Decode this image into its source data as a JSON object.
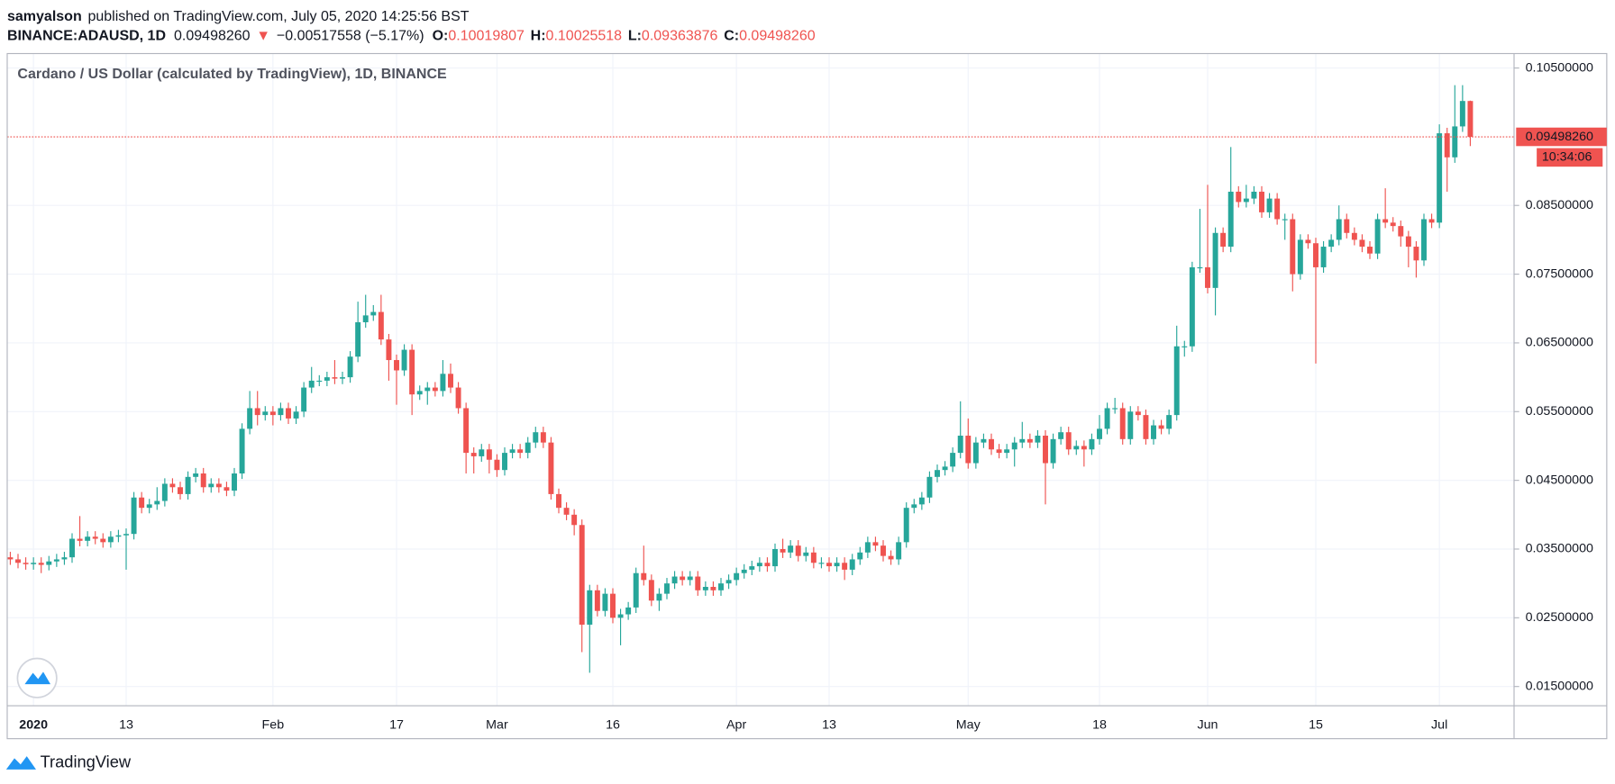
{
  "header": {
    "author": "samyalson",
    "published": "published on TradingView.com, July 05, 2020 14:25:56 BST",
    "symbol": "BINANCE:ADAUSD, 1D",
    "price": "0.09498260",
    "arrow": "▼",
    "change": "−0.00517558 (−5.17%)",
    "o_label": "O:",
    "o": "0.10019807",
    "h_label": "H:",
    "h": "0.10025518",
    "l_label": "L:",
    "l": "0.09363876",
    "c_label": "C:",
    "c": "0.09498260"
  },
  "footer": {
    "brand": "TradingView"
  },
  "chart_data": {
    "type": "candlestick",
    "title": "Cardano / US Dollar (calculated by TradingView), 1D, BINANCE",
    "up_color": "#26a69a",
    "down_color": "#ef5350",
    "grid": true,
    "ylim": [
      0.0122,
      0.1071
    ],
    "yticks": [
      {
        "value": 0.105,
        "label": "0.10500000"
      },
      {
        "value": 0.085,
        "label": "0.08500000"
      },
      {
        "value": 0.075,
        "label": "0.07500000"
      },
      {
        "value": 0.065,
        "label": "0.06500000"
      },
      {
        "value": 0.055,
        "label": "0.05500000"
      },
      {
        "value": 0.045,
        "label": "0.04500000"
      },
      {
        "value": 0.035,
        "label": "0.03500000"
      },
      {
        "value": 0.025,
        "label": "0.02500000"
      },
      {
        "value": 0.015,
        "label": "0.01500000"
      }
    ],
    "price_line": {
      "value": 0.0949826,
      "label": "0.09498260",
      "countdown": "10:34:06"
    },
    "categories": [
      null,
      null,
      null,
      "2020",
      null,
      null,
      null,
      null,
      null,
      null,
      null,
      null,
      null,
      null,
      null,
      "13",
      null,
      null,
      null,
      null,
      null,
      null,
      null,
      null,
      null,
      null,
      null,
      null,
      null,
      null,
      null,
      null,
      null,
      null,
      "Feb",
      null,
      null,
      null,
      null,
      null,
      null,
      null,
      null,
      null,
      null,
      null,
      null,
      null,
      null,
      null,
      "17",
      null,
      null,
      null,
      null,
      null,
      null,
      null,
      null,
      null,
      null,
      null,
      null,
      "Mar",
      null,
      null,
      null,
      null,
      null,
      null,
      null,
      null,
      null,
      null,
      null,
      null,
      null,
      null,
      "16",
      null,
      null,
      null,
      null,
      null,
      null,
      null,
      null,
      null,
      null,
      null,
      null,
      null,
      null,
      null,
      "Apr",
      null,
      null,
      null,
      null,
      null,
      null,
      null,
      null,
      null,
      null,
      null,
      "13",
      null,
      null,
      null,
      null,
      null,
      null,
      null,
      null,
      null,
      null,
      null,
      null,
      null,
      null,
      null,
      null,
      null,
      "May",
      null,
      null,
      null,
      null,
      null,
      null,
      null,
      null,
      null,
      null,
      null,
      null,
      null,
      null,
      null,
      null,
      "18",
      null,
      null,
      null,
      null,
      null,
      null,
      null,
      null,
      null,
      null,
      null,
      null,
      null,
      "Jun",
      null,
      null,
      null,
      null,
      null,
      null,
      null,
      null,
      null,
      null,
      null,
      null,
      null,
      "15",
      null,
      null,
      null,
      null,
      null,
      null,
      null,
      null,
      null,
      null,
      null,
      null,
      null,
      null,
      null,
      "Jul",
      null,
      null,
      null,
      null
    ],
    "open": [
      0.0338,
      0.0335,
      0.033,
      0.0328,
      0.033,
      0.0327,
      0.0332,
      0.0335,
      0.0338,
      0.0365,
      0.0362,
      0.0368,
      0.0365,
      0.036,
      0.0368,
      0.037,
      0.0372,
      0.0425,
      0.041,
      0.0415,
      0.042,
      0.0445,
      0.044,
      0.043,
      0.0455,
      0.046,
      0.044,
      0.0445,
      0.044,
      0.0435,
      0.046,
      0.0525,
      0.0555,
      0.0545,
      0.055,
      0.0545,
      0.0555,
      0.054,
      0.055,
      0.0585,
      0.0595,
      0.0595,
      0.06,
      0.0598,
      0.06,
      0.063,
      0.068,
      0.069,
      0.0695,
      0.0655,
      0.0625,
      0.061,
      0.064,
      0.0575,
      0.058,
      0.0585,
      0.058,
      0.0605,
      0.0585,
      0.0555,
      0.049,
      0.0485,
      0.0495,
      0.048,
      0.0465,
      0.049,
      0.0495,
      0.049,
      0.0505,
      0.052,
      0.0505,
      0.043,
      0.041,
      0.04,
      0.0385,
      0.024,
      0.029,
      0.026,
      0.0285,
      0.025,
      0.0255,
      0.0265,
      0.0315,
      0.0305,
      0.0275,
      0.0285,
      0.03,
      0.031,
      0.0305,
      0.031,
      0.029,
      0.0295,
      0.029,
      0.03,
      0.0305,
      0.0315,
      0.032,
      0.0325,
      0.033,
      0.0325,
      0.035,
      0.0345,
      0.0355,
      0.034,
      0.0345,
      0.033,
      0.033,
      0.0325,
      0.033,
      0.032,
      0.0335,
      0.0345,
      0.036,
      0.0355,
      0.034,
      0.0335,
      0.036,
      0.041,
      0.0415,
      0.0425,
      0.0455,
      0.0465,
      0.047,
      0.049,
      0.0515,
      0.0475,
      0.0505,
      0.051,
      0.0495,
      0.049,
      0.0495,
      0.0505,
      0.051,
      0.0505,
      0.0515,
      0.0475,
      0.051,
      0.052,
      0.0495,
      0.05,
      0.0495,
      0.051,
      0.0525,
      0.0555,
      0.0555,
      0.051,
      0.055,
      0.0545,
      0.051,
      0.053,
      0.0525,
      0.0545,
      0.0645,
      0.0645,
      0.076,
      0.076,
      0.073,
      0.081,
      0.079,
      0.087,
      0.0855,
      0.086,
      0.087,
      0.084,
      0.086,
      0.083,
      0.083,
      0.075,
      0.08,
      0.0795,
      0.076,
      0.079,
      0.08,
      0.083,
      0.081,
      0.08,
      0.079,
      0.078,
      0.083,
      0.0825,
      0.082,
      0.0805,
      0.079,
      0.077,
      0.083,
      0.0825,
      0.0955,
      0.092,
      0.0965,
      0.10019807
    ],
    "high": [
      0.0346,
      0.0343,
      0.0338,
      0.0338,
      0.0338,
      0.034,
      0.0343,
      0.0346,
      0.0373,
      0.0398,
      0.0376,
      0.0376,
      0.0373,
      0.0376,
      0.0378,
      0.038,
      0.0433,
      0.0433,
      0.0423,
      0.044,
      0.0453,
      0.0453,
      0.0448,
      0.0463,
      0.0468,
      0.0468,
      0.0453,
      0.0453,
      0.0448,
      0.0468,
      0.0533,
      0.058,
      0.058,
      0.0558,
      0.0558,
      0.0563,
      0.0563,
      0.0558,
      0.0593,
      0.0615,
      0.0603,
      0.0608,
      0.0625,
      0.0608,
      0.0638,
      0.071,
      0.072,
      0.0705,
      0.072,
      0.0663,
      0.0633,
      0.0648,
      0.0648,
      0.0588,
      0.0593,
      0.0593,
      0.0625,
      0.062,
      0.0593,
      0.0563,
      0.0498,
      0.0503,
      0.0503,
      0.0488,
      0.0498,
      0.0503,
      0.0503,
      0.0513,
      0.0528,
      0.0528,
      0.0513,
      0.0438,
      0.0418,
      0.0408,
      0.0393,
      0.0298,
      0.0298,
      0.0293,
      0.0293,
      0.0263,
      0.0273,
      0.0323,
      0.0355,
      0.0313,
      0.0293,
      0.0308,
      0.0318,
      0.0318,
      0.0318,
      0.0318,
      0.0303,
      0.0303,
      0.0308,
      0.0313,
      0.0323,
      0.0328,
      0.0333,
      0.0338,
      0.0338,
      0.0358,
      0.0365,
      0.0363,
      0.0363,
      0.0353,
      0.0353,
      0.0338,
      0.0338,
      0.0338,
      0.0338,
      0.0343,
      0.0353,
      0.0368,
      0.0368,
      0.0363,
      0.0348,
      0.0368,
      0.0418,
      0.0423,
      0.0433,
      0.0463,
      0.0473,
      0.0478,
      0.0498,
      0.0565,
      0.054,
      0.0513,
      0.0518,
      0.0518,
      0.0503,
      0.0503,
      0.0513,
      0.0535,
      0.0518,
      0.0523,
      0.0523,
      0.0518,
      0.0528,
      0.0528,
      0.0508,
      0.0508,
      0.0518,
      0.0545,
      0.0563,
      0.057,
      0.0563,
      0.0558,
      0.0558,
      0.0553,
      0.0538,
      0.0538,
      0.0553,
      0.0675,
      0.0653,
      0.0768,
      0.0845,
      0.088,
      0.0818,
      0.0818,
      0.0935,
      0.0878,
      0.088,
      0.0878,
      0.0878,
      0.0868,
      0.0868,
      0.0838,
      0.0838,
      0.0808,
      0.0808,
      0.0803,
      0.0798,
      0.0808,
      0.085,
      0.0838,
      0.0818,
      0.0808,
      0.0798,
      0.0838,
      0.0875,
      0.0833,
      0.0828,
      0.0813,
      0.0798,
      0.0838,
      0.0838,
      0.0968,
      0.0963,
      0.1025,
      0.1025,
      0.10025518
    ],
    "low": [
      0.0327,
      0.0322,
      0.032,
      0.032,
      0.0315,
      0.0319,
      0.0324,
      0.0327,
      0.033,
      0.0354,
      0.0354,
      0.0357,
      0.0352,
      0.0352,
      0.036,
      0.032,
      0.0364,
      0.0402,
      0.0402,
      0.0407,
      0.0412,
      0.0432,
      0.0422,
      0.0422,
      0.0447,
      0.0432,
      0.0432,
      0.0432,
      0.0427,
      0.0427,
      0.0452,
      0.0517,
      0.053,
      0.0537,
      0.053,
      0.0537,
      0.0532,
      0.0532,
      0.0542,
      0.0577,
      0.0587,
      0.0587,
      0.059,
      0.059,
      0.0592,
      0.0622,
      0.0672,
      0.0682,
      0.0647,
      0.0595,
      0.056,
      0.0602,
      0.0545,
      0.0567,
      0.056,
      0.0572,
      0.0572,
      0.0577,
      0.0547,
      0.046,
      0.046,
      0.0477,
      0.046,
      0.0455,
      0.0457,
      0.0482,
      0.0482,
      0.0482,
      0.0497,
      0.0497,
      0.0422,
      0.0402,
      0.0392,
      0.037,
      0.02,
      0.017,
      0.0252,
      0.0252,
      0.0242,
      0.021,
      0.0247,
      0.0257,
      0.0297,
      0.0267,
      0.026,
      0.0277,
      0.0292,
      0.0297,
      0.0297,
      0.0282,
      0.0282,
      0.0282,
      0.0282,
      0.0292,
      0.0297,
      0.0307,
      0.0312,
      0.0317,
      0.0317,
      0.0317,
      0.0337,
      0.0337,
      0.0332,
      0.0332,
      0.0322,
      0.0322,
      0.0317,
      0.0317,
      0.0305,
      0.0312,
      0.0327,
      0.0337,
      0.0347,
      0.0332,
      0.0327,
      0.0327,
      0.0352,
      0.0402,
      0.0407,
      0.0417,
      0.0447,
      0.0457,
      0.0462,
      0.0482,
      0.0467,
      0.0467,
      0.0497,
      0.0487,
      0.0482,
      0.0482,
      0.047,
      0.0497,
      0.0497,
      0.0497,
      0.0415,
      0.0467,
      0.0502,
      0.0487,
      0.0487,
      0.047,
      0.0487,
      0.0502,
      0.0517,
      0.0547,
      0.0502,
      0.0502,
      0.0537,
      0.0502,
      0.0502,
      0.0517,
      0.0517,
      0.0537,
      0.063,
      0.0637,
      0.0752,
      0.0722,
      0.069,
      0.0782,
      0.0782,
      0.0847,
      0.0847,
      0.0852,
      0.0832,
      0.0832,
      0.0822,
      0.08,
      0.0725,
      0.0742,
      0.0787,
      0.062,
      0.0752,
      0.0782,
      0.0792,
      0.0802,
      0.0792,
      0.0782,
      0.0772,
      0.0772,
      0.0817,
      0.0812,
      0.079,
      0.076,
      0.0745,
      0.0762,
      0.0817,
      0.0817,
      0.087,
      0.0912,
      0.0957,
      0.09363876
    ],
    "close": [
      0.0335,
      0.033,
      0.0328,
      0.033,
      0.0327,
      0.0332,
      0.0335,
      0.0338,
      0.0365,
      0.0362,
      0.0368,
      0.0365,
      0.036,
      0.0368,
      0.037,
      0.0372,
      0.0425,
      0.041,
      0.0415,
      0.042,
      0.0445,
      0.044,
      0.043,
      0.0455,
      0.046,
      0.044,
      0.0445,
      0.044,
      0.0435,
      0.046,
      0.0525,
      0.0555,
      0.0545,
      0.055,
      0.0545,
      0.0555,
      0.054,
      0.055,
      0.0585,
      0.0595,
      0.0595,
      0.06,
      0.0598,
      0.06,
      0.063,
      0.068,
      0.069,
      0.0695,
      0.0655,
      0.0625,
      0.061,
      0.064,
      0.0575,
      0.058,
      0.0585,
      0.058,
      0.0605,
      0.0585,
      0.0555,
      0.049,
      0.0485,
      0.0495,
      0.048,
      0.0465,
      0.049,
      0.0495,
      0.049,
      0.0505,
      0.052,
      0.0505,
      0.043,
      0.041,
      0.04,
      0.0385,
      0.024,
      0.029,
      0.026,
      0.0285,
      0.025,
      0.0255,
      0.0265,
      0.0315,
      0.0305,
      0.0275,
      0.0285,
      0.03,
      0.031,
      0.0305,
      0.031,
      0.029,
      0.0295,
      0.029,
      0.03,
      0.0305,
      0.0315,
      0.032,
      0.0325,
      0.033,
      0.0325,
      0.035,
      0.0345,
      0.0355,
      0.034,
      0.0345,
      0.033,
      0.033,
      0.0325,
      0.033,
      0.032,
      0.0335,
      0.0345,
      0.036,
      0.0355,
      0.034,
      0.0335,
      0.036,
      0.041,
      0.0415,
      0.0425,
      0.0455,
      0.0465,
      0.047,
      0.049,
      0.0515,
      0.0475,
      0.0505,
      0.051,
      0.0495,
      0.049,
      0.0495,
      0.0505,
      0.051,
      0.0505,
      0.0515,
      0.0475,
      0.051,
      0.052,
      0.0495,
      0.05,
      0.0495,
      0.051,
      0.0525,
      0.0555,
      0.0555,
      0.051,
      0.055,
      0.0545,
      0.051,
      0.053,
      0.0525,
      0.0545,
      0.0645,
      0.0645,
      0.076,
      0.076,
      0.073,
      0.081,
      0.079,
      0.087,
      0.0855,
      0.086,
      0.087,
      0.084,
      0.086,
      0.083,
      0.083,
      0.075,
      0.08,
      0.0795,
      0.076,
      0.079,
      0.08,
      0.083,
      0.081,
      0.08,
      0.079,
      0.078,
      0.083,
      0.0825,
      0.082,
      0.0805,
      0.079,
      0.077,
      0.083,
      0.0825,
      0.0955,
      0.092,
      0.0965,
      0.1002,
      0.0949826
    ]
  }
}
